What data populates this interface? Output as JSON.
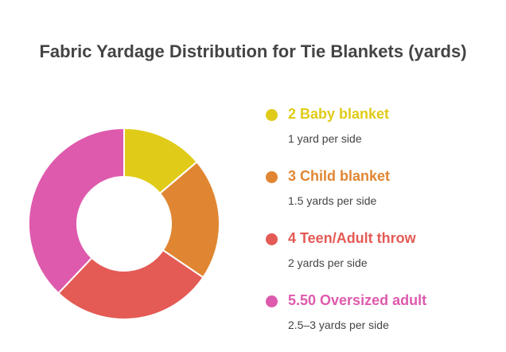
{
  "chart_data": {
    "type": "pie",
    "title": "Fabric Yardage Distribution for Tie Blankets (yards)",
    "categories": [
      "Baby blanket",
      "Child blanket",
      "Teen/Adult throw",
      "Oversized adult"
    ],
    "values": [
      2,
      3,
      4,
      5.5
    ],
    "labels": [
      "2 Baby blanket",
      "3 Child blanket",
      "4 Teen/Adult throw",
      "5.50 Oversized adult"
    ],
    "descriptions": [
      "1 yard per side",
      "1.5 yards per side",
      "2 yards per side",
      "2.5–3 yards per side"
    ],
    "colors": [
      "#E0CB18",
      "#E08632",
      "#E45A55",
      "#DE5AAD"
    ],
    "donut": true,
    "legend_position": "right"
  }
}
